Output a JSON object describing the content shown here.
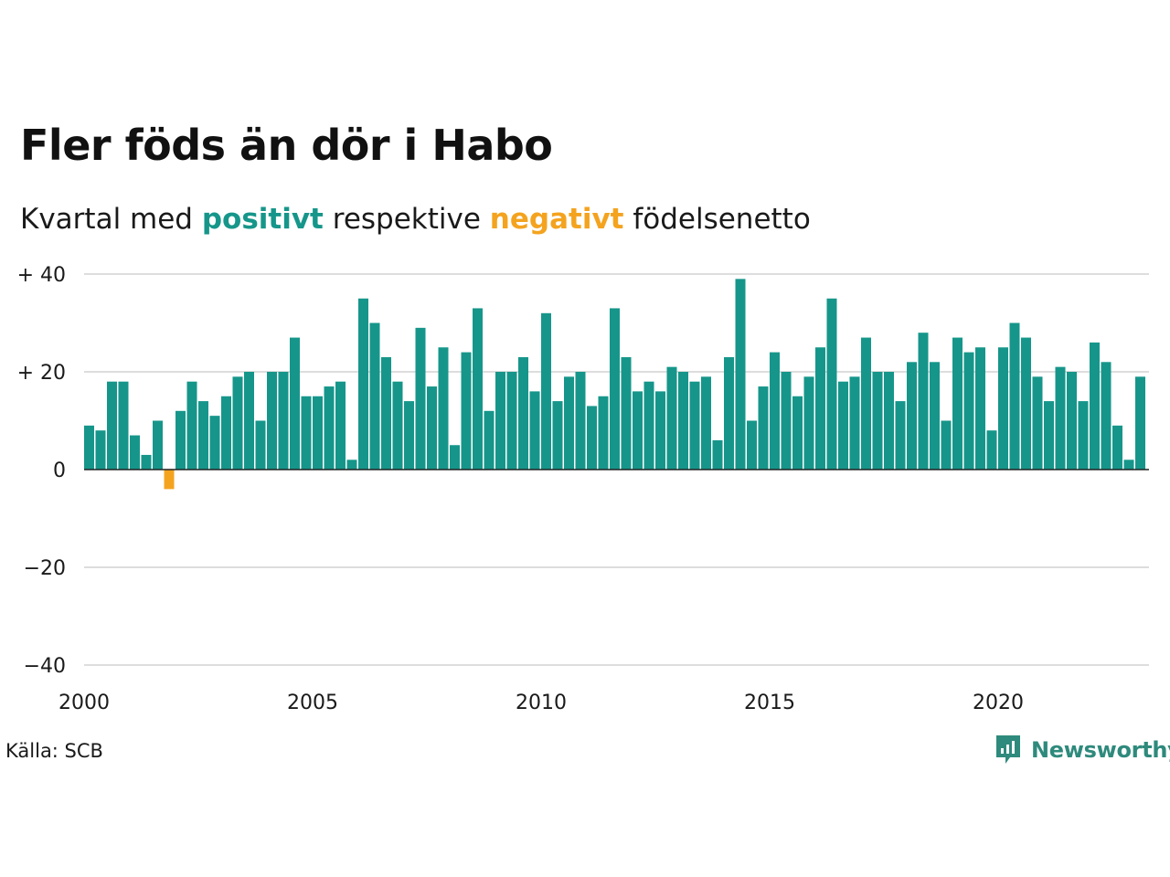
{
  "title": "Fler föds än dör i Habo",
  "subtitle": {
    "prefix": "Kvartal med",
    "positive_word": "positivt",
    "middle": "respektive",
    "negative_word": "negativt",
    "suffix": "födelsenetto"
  },
  "colors": {
    "positive": "#16968a",
    "negative": "#f4a31f",
    "grid": "#dddddd",
    "zero_line": "#222222"
  },
  "source": "Källa: SCB",
  "brand": {
    "name": "Newsworthy",
    "icon": "newsworthy-logo-icon"
  },
  "chart_data": {
    "type": "bar",
    "ylim": [
      -40,
      40
    ],
    "y_ticks": [
      {
        "value": 40,
        "label": "+ 40"
      },
      {
        "value": 20,
        "label": "+ 20"
      },
      {
        "value": 0,
        "label": "0"
      },
      {
        "value": -20,
        "label": "−20"
      },
      {
        "value": -40,
        "label": "−40"
      }
    ],
    "x_ticks": [
      {
        "value": 2000,
        "label": "2000"
      },
      {
        "value": 2005,
        "label": "2005"
      },
      {
        "value": 2010,
        "label": "2010"
      },
      {
        "value": 2015,
        "label": "2015"
      },
      {
        "value": 2020,
        "label": "2020"
      }
    ],
    "xlim": [
      2000,
      2023.25
    ],
    "start_year": 2000,
    "grid": true,
    "values": [
      9,
      8,
      18,
      18,
      7,
      3,
      10,
      -4,
      12,
      18,
      14,
      11,
      15,
      19,
      20,
      10,
      20,
      20,
      27,
      15,
      15,
      17,
      18,
      2,
      35,
      30,
      23,
      18,
      14,
      29,
      17,
      25,
      5,
      24,
      33,
      12,
      20,
      20,
      23,
      16,
      32,
      14,
      19,
      20,
      13,
      15,
      33,
      23,
      16,
      18,
      16,
      21,
      20,
      18,
      19,
      6,
      23,
      39,
      10,
      17,
      24,
      20,
      15,
      19,
      25,
      35,
      18,
      19,
      27,
      20,
      20,
      14,
      22,
      28,
      22,
      10,
      27,
      24,
      25,
      8,
      25,
      30,
      27,
      19,
      14,
      21,
      20,
      14,
      26,
      22,
      9,
      2,
      19
    ]
  }
}
